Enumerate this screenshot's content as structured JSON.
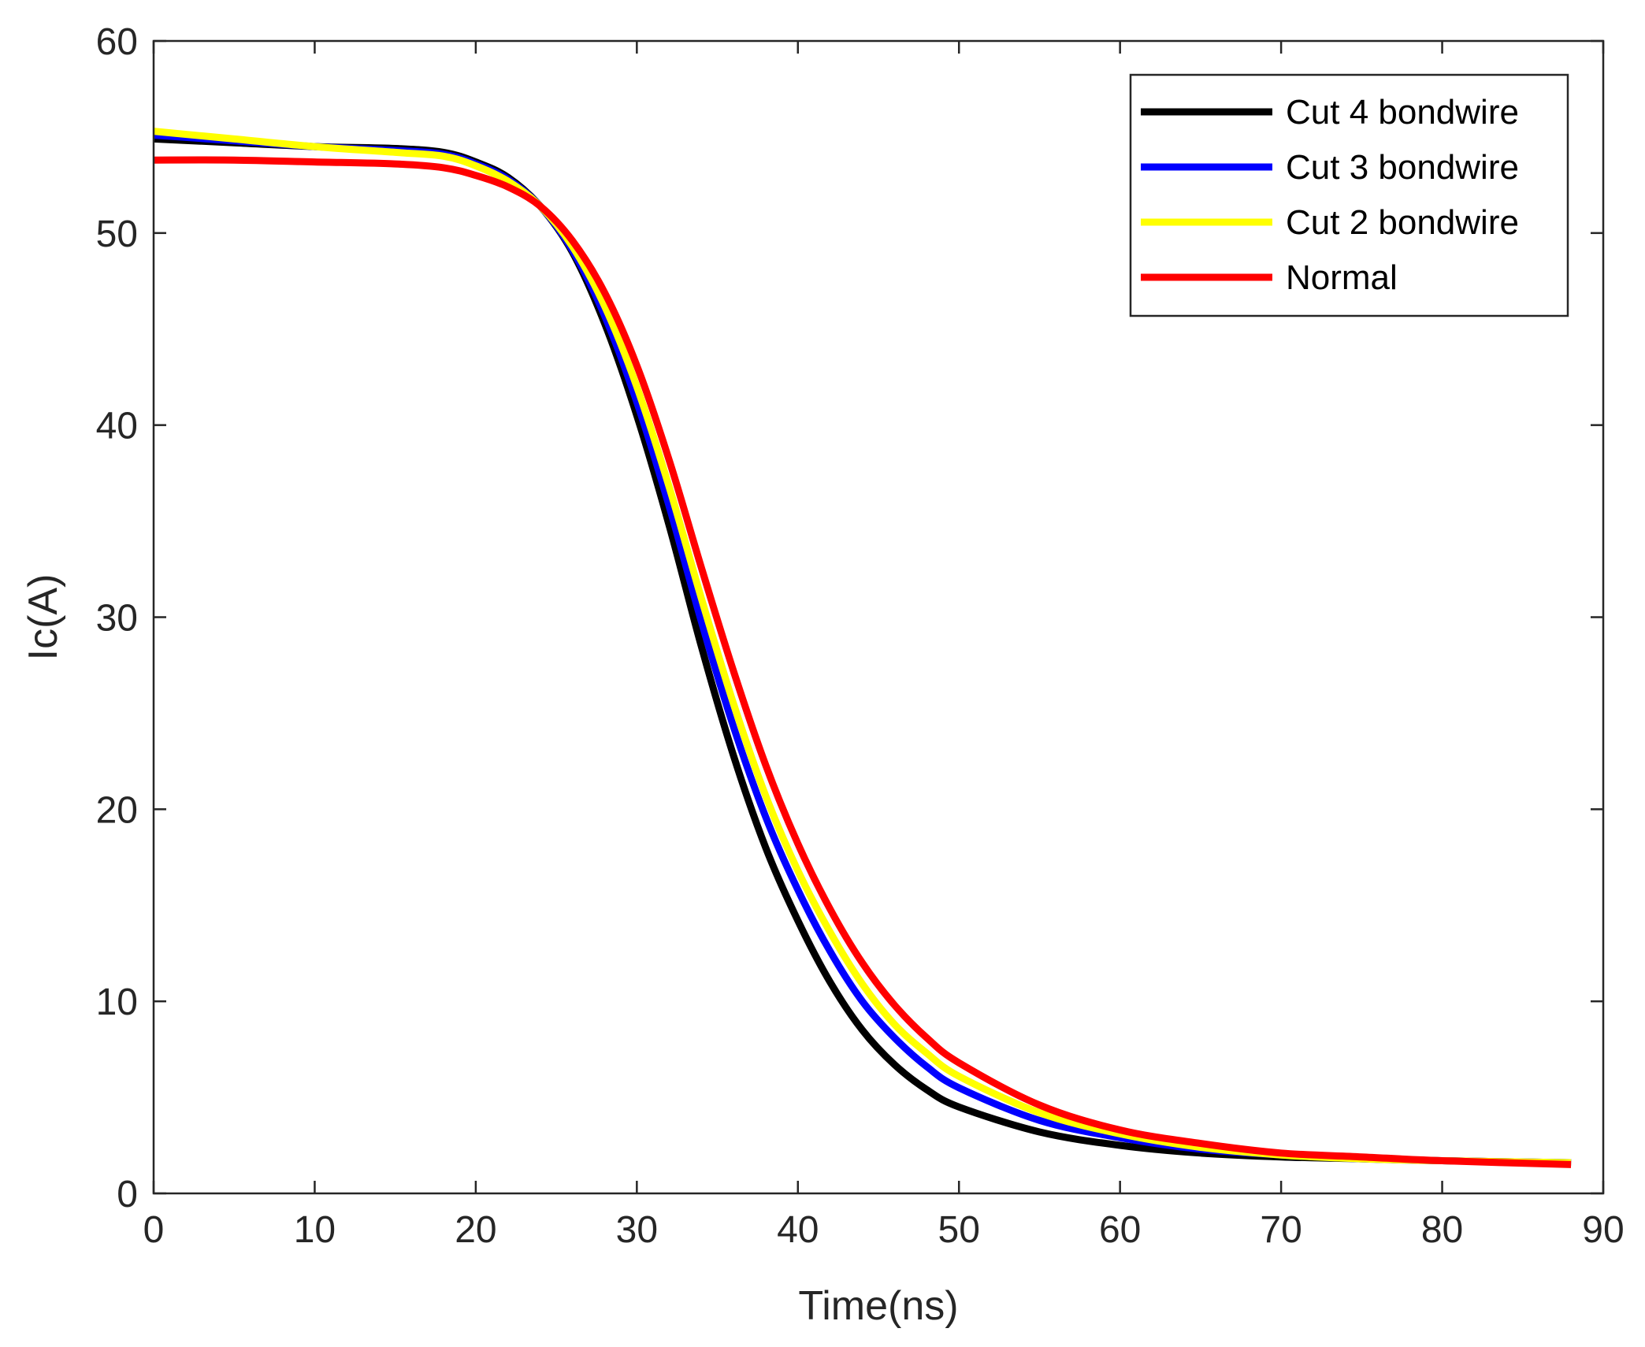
{
  "chart_data": {
    "type": "line",
    "title": "",
    "xlabel": "Time(ns)",
    "ylabel": "Ic(A)",
    "xlim": [
      0,
      90
    ],
    "ylim": [
      0,
      60
    ],
    "xticks": [
      0,
      10,
      20,
      30,
      40,
      50,
      60,
      70,
      80,
      90
    ],
    "yticks": [
      0,
      10,
      20,
      30,
      40,
      50,
      60
    ],
    "grid": false,
    "legend_position": "top-right",
    "series": [
      {
        "name": "Cut 4 bondwire",
        "color": "#000000",
        "x": [
          0,
          5,
          10,
          15,
          18,
          20,
          22,
          24,
          26,
          28,
          30,
          32,
          34,
          36,
          38,
          40,
          42,
          44,
          46,
          48,
          50,
          55,
          60,
          65,
          70,
          75,
          80,
          88
        ],
        "y": [
          54.9,
          54.7,
          54.5,
          54.4,
          54.2,
          53.7,
          52.9,
          51.4,
          49.0,
          45.3,
          40.5,
          34.8,
          28.5,
          22.8,
          18.0,
          14.2,
          11.0,
          8.5,
          6.7,
          5.4,
          4.5,
          3.2,
          2.5,
          2.1,
          1.9,
          1.8,
          1.7,
          1.6
        ]
      },
      {
        "name": "Cut 3 bondwire",
        "color": "#0000ff",
        "x": [
          0,
          5,
          10,
          15,
          18,
          20,
          22,
          24,
          26,
          28,
          30,
          32,
          34,
          36,
          38,
          40,
          42,
          44,
          46,
          48,
          50,
          55,
          60,
          65,
          70,
          75,
          80,
          88
        ],
        "y": [
          55.1,
          54.8,
          54.5,
          54.3,
          54.1,
          53.6,
          52.8,
          51.4,
          49.1,
          45.7,
          41.2,
          35.8,
          29.8,
          24.3,
          19.6,
          15.8,
          12.6,
          10.0,
          8.1,
          6.6,
          5.5,
          3.8,
          2.9,
          2.3,
          2.0,
          1.8,
          1.7,
          1.6
        ]
      },
      {
        "name": "Cut 2 bondwire",
        "color": "#ffff00",
        "x": [
          0,
          5,
          10,
          15,
          18,
          20,
          22,
          24,
          26,
          28,
          30,
          32,
          34,
          36,
          38,
          40,
          42,
          44,
          46,
          48,
          50,
          55,
          60,
          65,
          70,
          75,
          80,
          88
        ],
        "y": [
          55.3,
          54.9,
          54.5,
          54.2,
          54.0,
          53.5,
          52.7,
          51.4,
          49.3,
          46.2,
          42.0,
          36.8,
          31.0,
          25.5,
          20.7,
          16.8,
          13.6,
          10.9,
          8.8,
          7.3,
          6.1,
          4.2,
          3.1,
          2.4,
          2.0,
          1.8,
          1.7,
          1.6
        ]
      },
      {
        "name": "Normal",
        "color": "#ff0000",
        "x": [
          0,
          5,
          10,
          15,
          18,
          20,
          22,
          24,
          26,
          28,
          30,
          32,
          34,
          36,
          38,
          40,
          42,
          44,
          46,
          48,
          50,
          55,
          60,
          65,
          70,
          75,
          80,
          88
        ],
        "y": [
          53.8,
          53.8,
          53.7,
          53.6,
          53.4,
          53.0,
          52.4,
          51.4,
          49.6,
          46.9,
          43.1,
          38.2,
          32.6,
          27.2,
          22.3,
          18.2,
          14.8,
          12.0,
          9.8,
          8.1,
          6.8,
          4.6,
          3.3,
          2.6,
          2.1,
          1.9,
          1.7,
          1.5
        ]
      }
    ]
  }
}
